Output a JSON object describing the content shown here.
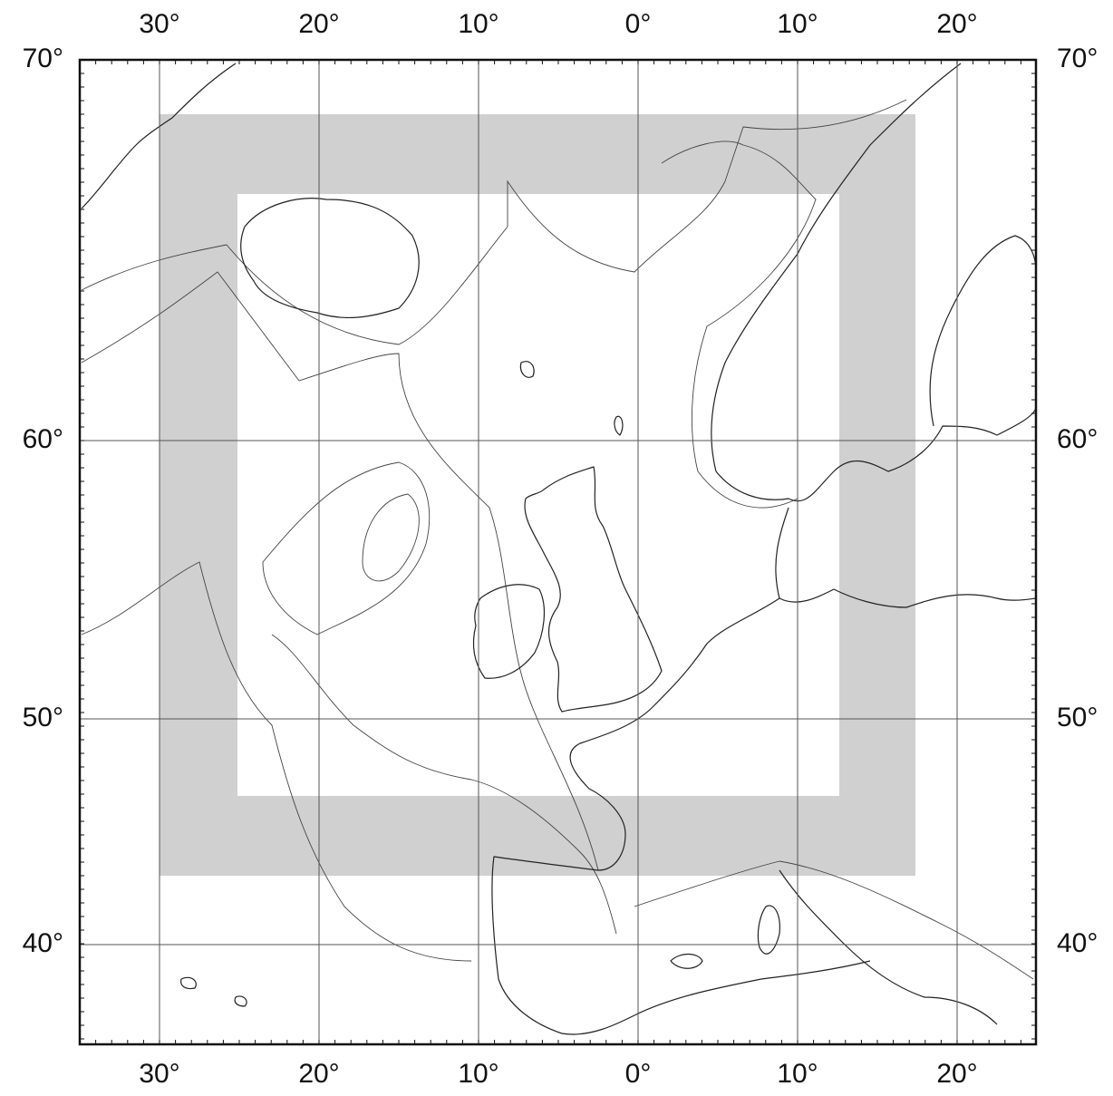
{
  "map": {
    "longitude_labels": [
      "30°",
      "20°",
      "10°",
      "0°",
      "10°",
      "20°"
    ],
    "latitude_labels": [
      "70°",
      "60°",
      "50°",
      "40°"
    ]
  }
}
